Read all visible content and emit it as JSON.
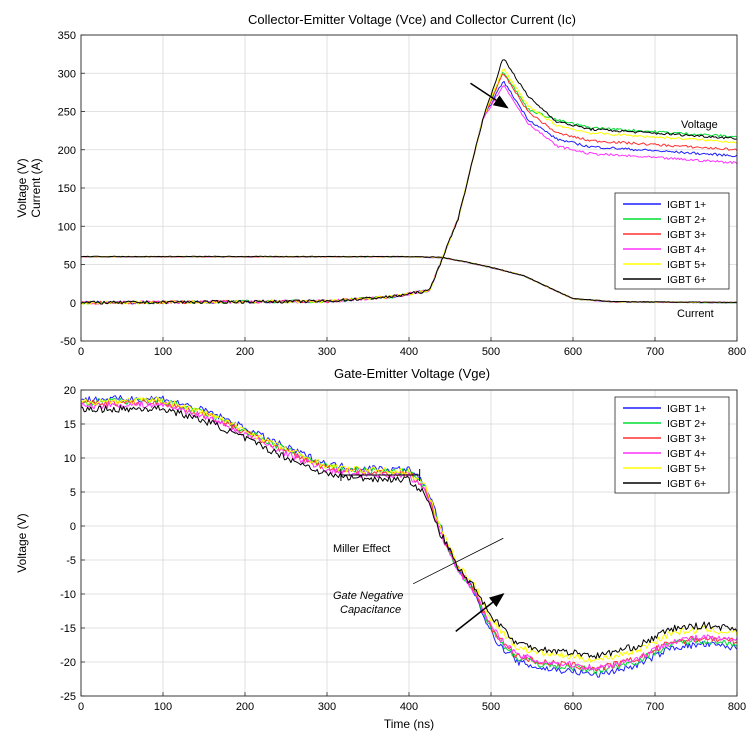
{
  "chart_data": [
    {
      "type": "line",
      "title": "Collector-Emitter Voltage (Vce) and Collector Current (Ic)",
      "ylabel": [
        "Voltage (V)",
        "Current (A)"
      ],
      "xlabel": "",
      "xlim": [
        0,
        800
      ],
      "ylim": [
        -50,
        350
      ],
      "xticks": [
        0,
        100,
        200,
        300,
        400,
        500,
        600,
        700,
        800
      ],
      "yticks": [
        -50,
        0,
        50,
        100,
        150,
        200,
        250,
        300,
        350
      ],
      "grid": true,
      "legend_position": "right",
      "annotations": [
        {
          "text": "Voltage",
          "x": 760,
          "y": 232
        },
        {
          "text": "Current",
          "x": 760,
          "y": -7
        }
      ],
      "arrow": {
        "from": [
          475,
          287
        ],
        "to": [
          520,
          255
        ]
      },
      "series": [
        {
          "name": "IGBT 1+",
          "color": "#1f1fff",
          "vce_peak": 290,
          "vce_end": 192,
          "noise": 4
        },
        {
          "name": "IGBT 2+",
          "color": "#00dd33",
          "vce_peak": 303,
          "vce_end": 217,
          "noise": 4
        },
        {
          "name": "IGBT 3+",
          "color": "#ff3030",
          "vce_peak": 300,
          "vce_end": 200,
          "noise": 4
        },
        {
          "name": "IGBT 4+",
          "color": "#ff33ff",
          "vce_peak": 285,
          "vce_end": 183,
          "noise": 4
        },
        {
          "name": "IGBT 5+",
          "color": "#ffff00",
          "vce_peak": 307,
          "vce_end": 210,
          "noise": 4
        },
        {
          "name": "IGBT 6+",
          "color": "#000000",
          "vce_peak": 320,
          "vce_end": 215,
          "noise": 4
        }
      ],
      "vce_profile": {
        "x": [
          0,
          300,
          380,
          425,
          460,
          490,
          515,
          545,
          580,
          620,
          800
        ],
        "y_base": [
          0,
          2,
          8,
          16,
          110,
          240,
          null,
          null,
          null,
          null,
          null
        ]
      },
      "ic_profile": {
        "x": [
          0,
          400,
          440,
          470,
          500,
          540,
          570,
          600,
          650,
          800
        ],
        "y": [
          60,
          60,
          59,
          53,
          46,
          35,
          20,
          5,
          1,
          0
        ]
      }
    },
    {
      "type": "line",
      "title": "Gate-Emitter Voltage (Vge)",
      "ylabel": "Voltage (V)",
      "xlabel": "Time (ns)",
      "xlim": [
        0,
        800
      ],
      "ylim": [
        -25,
        20
      ],
      "xticks": [
        0,
        100,
        200,
        300,
        400,
        500,
        600,
        700,
        800
      ],
      "yticks": [
        -25,
        -20,
        -15,
        -10,
        -5,
        0,
        5,
        10,
        15,
        20
      ],
      "grid": true,
      "legend_position": "top-right",
      "annotations": [
        {
          "text": "Miller Effect",
          "x": 365,
          "y": 4.5
        },
        {
          "text": "Gate Negative",
          "x": 365,
          "y": -10,
          "italic": true
        },
        {
          "text": "Capacitance",
          "x": 365,
          "y": -12.3,
          "italic": true
        }
      ],
      "miller_bracket": {
        "x": [
          317,
          413
        ],
        "y": 7.5
      },
      "arrow": {
        "from": [
          457,
          -15.5
        ],
        "to": [
          515,
          -10
        ]
      },
      "leader": {
        "from": [
          405,
          -8.5
        ],
        "to": [
          515,
          -1.8
        ]
      },
      "vge_profile": {
        "x": [
          0,
          100,
          160,
          250,
          300,
          330,
          400,
          420,
          440,
          460,
          480,
          500,
          530,
          560,
          600,
          630,
          680,
          720,
          760,
          800
        ],
        "y": [
          18,
          18.2,
          16,
          11,
          8.5,
          8,
          7.7,
          5.5,
          -1,
          -6,
          -9,
          -14,
          -18,
          -19,
          -19.5,
          -20,
          -18.5,
          -16,
          -15.5,
          -16
        ]
      },
      "series": [
        {
          "name": "IGBT 1+",
          "color": "#1f1fff",
          "offset": 0.6,
          "tail": -2.5
        },
        {
          "name": "IGBT 2+",
          "color": "#00dd33",
          "offset": 0.2,
          "tail": -1.5
        },
        {
          "name": "IGBT 3+",
          "color": "#ff3030",
          "offset": 0.0,
          "tail": -1.0
        },
        {
          "name": "IGBT 4+",
          "color": "#ff33ff",
          "offset": -0.3,
          "tail": -0.6
        },
        {
          "name": "IGBT 5+",
          "color": "#ffff00",
          "offset": 0.3,
          "tail": 0.0
        },
        {
          "name": "IGBT 6+",
          "color": "#000000",
          "offset": -0.9,
          "tail": 1.8
        }
      ]
    }
  ]
}
